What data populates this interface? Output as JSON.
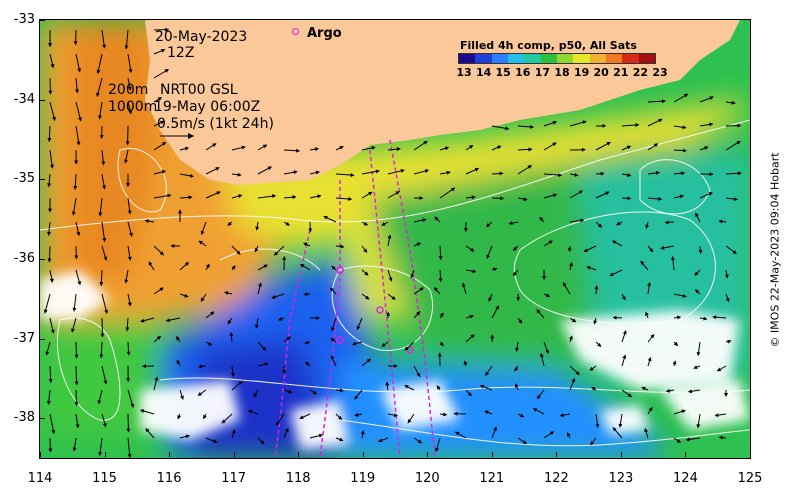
{
  "map": {
    "date_label": "20-May-2023",
    "time_label": "12Z",
    "current_depth_1": "200m",
    "current_depth_2": "1000m",
    "current_source": "NRT00 GSL",
    "current_time": "19-May 06:00Z",
    "vector_scale_label": "0.5m/s (1kt 24h)",
    "argo_label": "Argo",
    "credit": "© IMOS 22-May-2023 09:04 Hobart",
    "y_ticks": [
      "-33",
      "-34",
      "-35",
      "-36",
      "-37",
      "-38"
    ],
    "x_ticks": [
      "114",
      "115",
      "116",
      "117",
      "118",
      "119",
      "120",
      "121",
      "122",
      "123",
      "124",
      "125"
    ],
    "lon_range": [
      114,
      125
    ],
    "lat_range": [
      -38.5,
      -33
    ]
  },
  "colorbar": {
    "title": "Filled 4h comp, p50, All Sats",
    "ticks": [
      "13",
      "14",
      "15",
      "16",
      "17",
      "18",
      "19",
      "20",
      "21",
      "22",
      "23"
    ],
    "colors": [
      "#1a0a8c",
      "#1f3fd8",
      "#2b80ff",
      "#23c0e8",
      "#22c8a0",
      "#30c040",
      "#90d830",
      "#e8e828",
      "#f0b030",
      "#f07820",
      "#d82818",
      "#a01010"
    ]
  },
  "colors": {
    "land": "#fbc89a",
    "argo": "#e020e0",
    "contour": "#ffffff"
  }
}
